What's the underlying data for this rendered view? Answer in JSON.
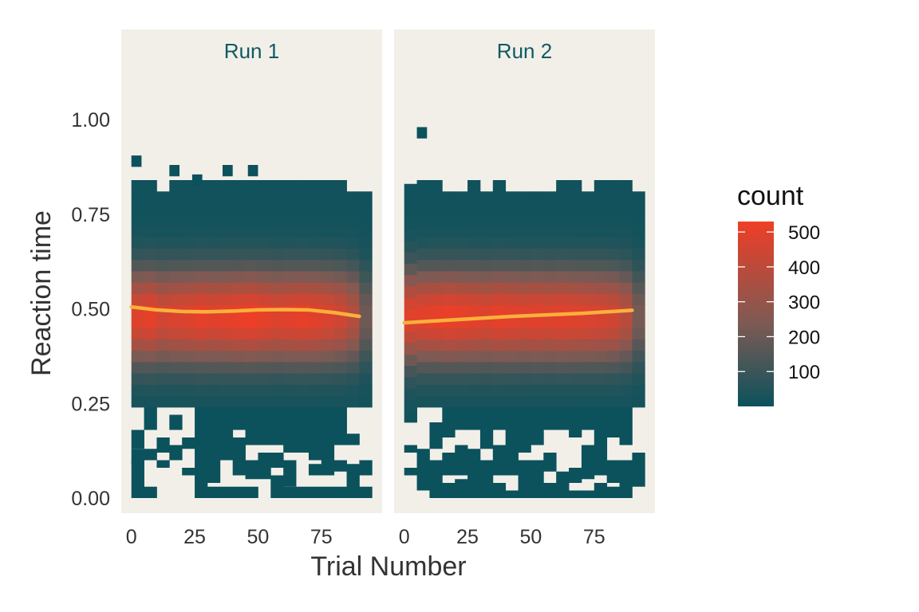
{
  "chart_data": {
    "type": "heatmap",
    "xlabel": "Trial Number",
    "ylabel": "Reaction time",
    "xlim": [
      -4,
      99
    ],
    "ylim": [
      -0.04,
      1.12
    ],
    "x_ticks": [
      0,
      25,
      50,
      75
    ],
    "y_ticks": [
      0.0,
      0.25,
      0.5,
      0.75,
      1.0
    ],
    "y_tick_labels": [
      "0.00",
      "0.25",
      "0.50",
      "0.75",
      "1.00"
    ],
    "bin_width_x": 5,
    "bin_width_y": 0.03,
    "panel_background": "#f2efe9",
    "grid": false,
    "legend": {
      "title": "count",
      "position": "right",
      "ticks": [
        100,
        200,
        300,
        400,
        500
      ],
      "range": [
        0,
        530
      ],
      "low_color": "#0b525c",
      "high_color": "#ef3e26"
    },
    "facets": [
      {
        "label": "Run 1",
        "smooth_color": "#fbb03b",
        "smooth": [
          [
            0,
            0.505
          ],
          [
            10,
            0.497
          ],
          [
            20,
            0.493
          ],
          [
            30,
            0.492
          ],
          [
            40,
            0.494
          ],
          [
            50,
            0.497
          ],
          [
            60,
            0.498
          ],
          [
            70,
            0.497
          ],
          [
            80,
            0.49
          ],
          [
            90,
            0.48
          ]
        ],
        "outliers": [
          [
            2,
            0.89
          ],
          [
            17,
            0.865
          ],
          [
            26,
            0.84
          ],
          [
            38,
            0.865
          ],
          [
            48,
            0.865
          ]
        ],
        "columns": [
          {
            "x": 2.5,
            "top": 0.82,
            "bottom": 0.24,
            "peak": 480,
            "low": [
              [
                0.13,
                0.18
              ],
              [
                0.09,
                0.13
              ],
              [
                0.0,
                0.1
              ]
            ]
          },
          {
            "x": 7.5,
            "top": 0.82,
            "bottom": 0.24,
            "peak": 500,
            "low": [
              [
                0.18,
                0.24
              ],
              [
                0.1,
                0.13
              ],
              [
                0.0,
                0.03
              ]
            ]
          },
          {
            "x": 12.5,
            "top": 0.8,
            "bottom": 0.24,
            "peak": 450,
            "low": [
              [
                0.12,
                0.16
              ],
              [
                0.08,
                0.1
              ]
            ]
          },
          {
            "x": 17.5,
            "top": 0.82,
            "bottom": 0.24,
            "peak": 470,
            "low": [
              [
                0.18,
                0.22
              ],
              [
                0.1,
                0.14
              ]
            ]
          },
          {
            "x": 22.5,
            "top": 0.82,
            "bottom": 0.24,
            "peak": 480,
            "low": [
              [
                0.13,
                0.16
              ],
              [
                0.06,
                0.08
              ]
            ]
          },
          {
            "x": 27.5,
            "top": 0.82,
            "bottom": 0.24,
            "peak": 500,
            "low": [
              [
                0.0,
                0.24
              ]
            ]
          },
          {
            "x": 32.5,
            "top": 0.82,
            "bottom": 0.24,
            "peak": 490,
            "low": [
              [
                0.04,
                0.24
              ],
              [
                0.0,
                0.03
              ]
            ]
          },
          {
            "x": 37.5,
            "top": 0.82,
            "bottom": 0.24,
            "peak": 500,
            "low": [
              [
                0.1,
                0.24
              ],
              [
                0.0,
                0.03
              ]
            ]
          },
          {
            "x": 42.5,
            "top": 0.82,
            "bottom": 0.24,
            "peak": 510,
            "low": [
              [
                0.18,
                0.24
              ],
              [
                0.06,
                0.16
              ],
              [
                0.0,
                0.03
              ]
            ]
          },
          {
            "x": 47.5,
            "top": 0.82,
            "bottom": 0.24,
            "peak": 520,
            "low": [
              [
                0.14,
                0.24
              ],
              [
                0.05,
                0.1
              ],
              [
                0.0,
                0.03
              ]
            ]
          },
          {
            "x": 52.5,
            "top": 0.82,
            "bottom": 0.24,
            "peak": 500,
            "low": [
              [
                0.14,
                0.24
              ],
              [
                0.05,
                0.12
              ]
            ]
          },
          {
            "x": 57.5,
            "top": 0.82,
            "bottom": 0.24,
            "peak": 480,
            "low": [
              [
                0.14,
                0.24
              ],
              [
                0.08,
                0.12
              ],
              [
                0.0,
                0.06
              ]
            ]
          },
          {
            "x": 62.5,
            "top": 0.82,
            "bottom": 0.24,
            "peak": 490,
            "low": [
              [
                0.12,
                0.24
              ],
              [
                0.03,
                0.1
              ],
              [
                0.0,
                0.03
              ]
            ]
          },
          {
            "x": 67.5,
            "top": 0.82,
            "bottom": 0.24,
            "peak": 500,
            "low": [
              [
                0.12,
                0.24
              ],
              [
                0.0,
                0.03
              ]
            ]
          },
          {
            "x": 72.5,
            "top": 0.82,
            "bottom": 0.24,
            "peak": 490,
            "low": [
              [
                0.1,
                0.24
              ],
              [
                0.06,
                0.09
              ],
              [
                0.0,
                0.03
              ]
            ]
          },
          {
            "x": 77.5,
            "top": 0.82,
            "bottom": 0.24,
            "peak": 470,
            "low": [
              [
                0.06,
                0.24
              ],
              [
                0.0,
                0.03
              ]
            ]
          },
          {
            "x": 82.5,
            "top": 0.82,
            "bottom": 0.24,
            "peak": 440,
            "low": [
              [
                0.14,
                0.24
              ],
              [
                0.07,
                0.1
              ],
              [
                0.0,
                0.03
              ]
            ]
          },
          {
            "x": 87.5,
            "top": 0.8,
            "bottom": 0.24,
            "peak": 370,
            "low": [
              [
                0.14,
                0.17
              ],
              [
                0.06,
                0.09
              ],
              [
                0.0,
                0.06
              ]
            ]
          },
          {
            "x": 92.5,
            "top": 0.8,
            "bottom": 0.24,
            "peak": 200,
            "low": [
              [
                0.06,
                0.1
              ],
              [
                0.0,
                0.03
              ]
            ]
          }
        ]
      },
      {
        "label": "Run 2",
        "smooth_color": "#fbb03b",
        "smooth": [
          [
            0,
            0.463
          ],
          [
            10,
            0.467
          ],
          [
            20,
            0.471
          ],
          [
            30,
            0.475
          ],
          [
            40,
            0.479
          ],
          [
            50,
            0.482
          ],
          [
            60,
            0.485
          ],
          [
            70,
            0.488
          ],
          [
            80,
            0.492
          ],
          [
            90,
            0.496
          ]
        ],
        "outliers": [
          [
            7,
            0.965
          ]
        ],
        "columns": [
          {
            "x": 2.5,
            "top": 0.82,
            "bottom": 0.2,
            "peak": 480,
            "low": [
              [
                0.12,
                0.14
              ],
              [
                0.06,
                0.08
              ]
            ]
          },
          {
            "x": 7.5,
            "top": 0.82,
            "bottom": 0.24,
            "peak": 490,
            "low": [
              [
                0.1,
                0.13
              ],
              [
                0.02,
                0.1
              ]
            ]
          },
          {
            "x": 12.5,
            "top": 0.82,
            "bottom": 0.24,
            "peak": 500,
            "low": [
              [
                0.13,
                0.2
              ],
              [
                0.0,
                0.1
              ]
            ]
          },
          {
            "x": 17.5,
            "top": 0.8,
            "bottom": 0.24,
            "peak": 510,
            "low": [
              [
                0.16,
                0.24
              ],
              [
                0.06,
                0.12
              ],
              [
                0.0,
                0.04
              ]
            ]
          },
          {
            "x": 22.5,
            "top": 0.8,
            "bottom": 0.24,
            "peak": 500,
            "low": [
              [
                0.18,
                0.24
              ],
              [
                0.06,
                0.14
              ],
              [
                0.0,
                0.05
              ]
            ]
          },
          {
            "x": 27.5,
            "top": 0.82,
            "bottom": 0.24,
            "peak": 490,
            "low": [
              [
                0.18,
                0.24
              ],
              [
                0.0,
                0.13
              ]
            ]
          },
          {
            "x": 32.5,
            "top": 0.8,
            "bottom": 0.24,
            "peak": 480,
            "low": [
              [
                0.13,
                0.24
              ],
              [
                0.0,
                0.1
              ]
            ]
          },
          {
            "x": 37.5,
            "top": 0.82,
            "bottom": 0.24,
            "peak": 500,
            "low": [
              [
                0.18,
                0.24
              ],
              [
                0.06,
                0.14
              ],
              [
                0.0,
                0.04
              ]
            ]
          },
          {
            "x": 42.5,
            "top": 0.8,
            "bottom": 0.24,
            "peak": 490,
            "low": [
              [
                0.06,
                0.24
              ],
              [
                0.0,
                0.02
              ]
            ]
          },
          {
            "x": 47.5,
            "top": 0.8,
            "bottom": 0.24,
            "peak": 480,
            "low": [
              [
                0.12,
                0.24
              ],
              [
                0.0,
                0.1
              ]
            ]
          },
          {
            "x": 52.5,
            "top": 0.8,
            "bottom": 0.24,
            "peak": 490,
            "low": [
              [
                0.14,
                0.24
              ],
              [
                0.0,
                0.1
              ]
            ]
          },
          {
            "x": 57.5,
            "top": 0.8,
            "bottom": 0.24,
            "peak": 480,
            "low": [
              [
                0.18,
                0.24
              ],
              [
                0.07,
                0.12
              ],
              [
                0.0,
                0.04
              ]
            ]
          },
          {
            "x": 62.5,
            "top": 0.82,
            "bottom": 0.24,
            "peak": 490,
            "low": [
              [
                0.18,
                0.24
              ],
              [
                0.0,
                0.07
              ]
            ]
          },
          {
            "x": 67.5,
            "top": 0.82,
            "bottom": 0.24,
            "peak": 480,
            "low": [
              [
                0.16,
                0.24
              ],
              [
                0.04,
                0.08
              ],
              [
                0.0,
                0.02
              ]
            ]
          },
          {
            "x": 72.5,
            "top": 0.8,
            "bottom": 0.24,
            "peak": 470,
            "low": [
              [
                0.18,
                0.24
              ],
              [
                0.05,
                0.14
              ],
              [
                0.0,
                0.02
              ]
            ]
          },
          {
            "x": 77.5,
            "top": 0.82,
            "bottom": 0.24,
            "peak": 460,
            "low": [
              [
                0.06,
                0.24
              ],
              [
                0.0,
                0.04
              ]
            ]
          },
          {
            "x": 82.5,
            "top": 0.82,
            "bottom": 0.24,
            "peak": 440,
            "low": [
              [
                0.16,
                0.24
              ],
              [
                0.04,
                0.1
              ],
              [
                0.0,
                0.03
              ]
            ]
          },
          {
            "x": 87.5,
            "top": 0.82,
            "bottom": 0.24,
            "peak": 380,
            "low": [
              [
                0.14,
                0.24
              ],
              [
                0.0,
                0.1
              ]
            ]
          },
          {
            "x": 92.5,
            "top": 0.8,
            "bottom": 0.24,
            "peak": 220,
            "low": [
              [
                0.06,
                0.12
              ],
              [
                0.03,
                0.06
              ]
            ]
          }
        ]
      }
    ]
  }
}
